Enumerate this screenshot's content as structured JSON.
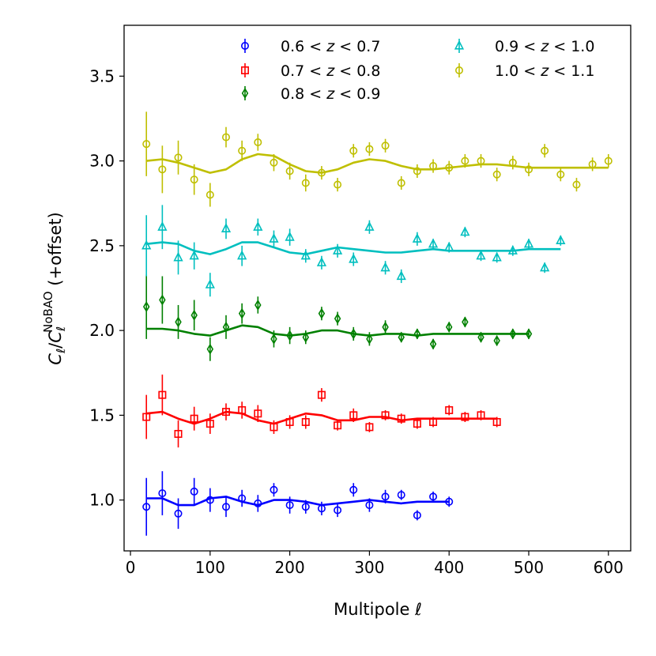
{
  "chart_data": {
    "type": "scatter",
    "xlabel": "Multipole",
    "xlabel_symbol": "ℓ",
    "ylabel_parts": {
      "c1": "C",
      "l1": "ℓ",
      "slash": "/",
      "c2": "C",
      "l2": "ℓ",
      "sup": "NoBAO",
      "suffix": " (+offset)"
    },
    "xlim": [
      -8,
      628
    ],
    "ylim": [
      0.7,
      3.8
    ],
    "xticks": [
      0,
      100,
      200,
      300,
      400,
      500,
      600
    ],
    "yticks": [
      "1.0",
      "1.5",
      "2.0",
      "2.5",
      "3.0",
      "3.5"
    ],
    "legend_z": "z",
    "legend_lt": "<",
    "series": [
      {
        "name": "0.6 < z < 0.7",
        "lo": "0.6",
        "hi": "0.7",
        "color": "#0000ff",
        "marker": "circle",
        "x": [
          20,
          40,
          60,
          80,
          100,
          120,
          140,
          160,
          180,
          200,
          220,
          240,
          260,
          280,
          300,
          320,
          340,
          360,
          380,
          400
        ],
        "y": [
          0.96,
          1.04,
          0.92,
          1.05,
          1.0,
          0.96,
          1.01,
          0.98,
          1.06,
          0.97,
          0.96,
          0.95,
          0.94,
          1.06,
          0.97,
          1.02,
          1.03,
          0.91,
          1.02,
          0.99
        ],
        "err": [
          0.17,
          0.13,
          0.09,
          0.08,
          0.07,
          0.06,
          0.05,
          0.05,
          0.04,
          0.05,
          0.04,
          0.04,
          0.04,
          0.04,
          0.04,
          0.04,
          0.03,
          0.03,
          0.03,
          0.03
        ],
        "model_x": [
          20,
          40,
          60,
          80,
          100,
          120,
          140,
          160,
          180,
          200,
          220,
          240,
          260,
          280,
          300,
          320,
          340,
          360,
          380,
          400
        ],
        "model_y": [
          1.01,
          1.01,
          0.97,
          0.97,
          1.01,
          1.02,
          0.99,
          0.97,
          1.0,
          1.0,
          0.99,
          0.97,
          0.98,
          0.99,
          1.0,
          0.99,
          0.98,
          0.99,
          0.99,
          0.99
        ]
      },
      {
        "name": "0.7 < z < 0.8",
        "lo": "0.7",
        "hi": "0.8",
        "color": "#ff0000",
        "marker": "square",
        "x": [
          20,
          40,
          60,
          80,
          100,
          120,
          140,
          160,
          180,
          200,
          220,
          240,
          260,
          280,
          300,
          320,
          340,
          360,
          380,
          400,
          420,
          440,
          460
        ],
        "y": [
          1.49,
          1.62,
          1.39,
          1.48,
          1.45,
          1.52,
          1.53,
          1.51,
          1.43,
          1.46,
          1.46,
          1.62,
          1.44,
          1.5,
          1.43,
          1.5,
          1.48,
          1.45,
          1.46,
          1.53,
          1.49,
          1.5,
          1.46
        ],
        "err": [
          0.13,
          0.12,
          0.08,
          0.07,
          0.06,
          0.05,
          0.05,
          0.05,
          0.04,
          0.04,
          0.04,
          0.04,
          0.03,
          0.04,
          0.03,
          0.03,
          0.03,
          0.03,
          0.03,
          0.03,
          0.03,
          0.03,
          0.03
        ],
        "model_x": [
          20,
          40,
          60,
          80,
          100,
          120,
          140,
          160,
          180,
          200,
          220,
          240,
          260,
          280,
          300,
          320,
          340,
          360,
          380,
          400,
          420,
          440,
          460
        ],
        "model_y": [
          1.51,
          1.52,
          1.48,
          1.45,
          1.48,
          1.52,
          1.51,
          1.47,
          1.45,
          1.48,
          1.51,
          1.5,
          1.47,
          1.47,
          1.49,
          1.49,
          1.47,
          1.48,
          1.48,
          1.48,
          1.48,
          1.48,
          1.48
        ]
      },
      {
        "name": "0.8 < z < 0.9",
        "lo": "0.8",
        "hi": "0.9",
        "color": "#008000",
        "marker": "diamond",
        "x": [
          20,
          40,
          60,
          80,
          100,
          120,
          140,
          160,
          180,
          200,
          220,
          240,
          260,
          280,
          300,
          320,
          340,
          360,
          380,
          400,
          420,
          440,
          460,
          480,
          500
        ],
        "y": [
          2.14,
          2.18,
          2.05,
          2.09,
          1.89,
          2.02,
          2.1,
          2.15,
          1.95,
          1.97,
          1.96,
          2.1,
          2.07,
          1.98,
          1.95,
          2.02,
          1.96,
          1.98,
          1.92,
          2.02,
          2.05,
          1.96,
          1.94,
          1.98,
          1.98
        ],
        "err": [
          0.19,
          0.14,
          0.1,
          0.09,
          0.07,
          0.07,
          0.06,
          0.05,
          0.05,
          0.05,
          0.04,
          0.04,
          0.04,
          0.04,
          0.04,
          0.04,
          0.03,
          0.03,
          0.03,
          0.03,
          0.03,
          0.03,
          0.03,
          0.03,
          0.03
        ],
        "model_x": [
          20,
          40,
          60,
          80,
          100,
          120,
          140,
          160,
          180,
          200,
          220,
          240,
          260,
          280,
          300,
          320,
          340,
          360,
          380,
          400,
          420,
          440,
          460,
          480,
          500
        ],
        "model_y": [
          2.01,
          2.01,
          2.0,
          1.98,
          1.97,
          2.0,
          2.03,
          2.02,
          1.98,
          1.97,
          1.98,
          2.0,
          2.0,
          1.98,
          1.97,
          1.98,
          1.98,
          1.97,
          1.98,
          1.98,
          1.98,
          1.98,
          1.98,
          1.98,
          1.98
        ]
      },
      {
        "name": "0.9 < z < 1.0",
        "lo": "0.9",
        "hi": "1.0",
        "color": "#00bfbf",
        "marker": "triangle",
        "x": [
          20,
          40,
          60,
          80,
          100,
          120,
          140,
          160,
          180,
          200,
          220,
          240,
          260,
          280,
          300,
          320,
          340,
          360,
          380,
          400,
          420,
          440,
          460,
          480,
          500,
          520,
          540
        ],
        "y": [
          2.5,
          2.61,
          2.43,
          2.44,
          2.27,
          2.6,
          2.44,
          2.61,
          2.54,
          2.55,
          2.44,
          2.4,
          2.47,
          2.42,
          2.61,
          2.37,
          2.32,
          2.54,
          2.51,
          2.49,
          2.58,
          2.44,
          2.43,
          2.47,
          2.51,
          2.37,
          2.53
        ],
        "err": [
          0.18,
          0.13,
          0.1,
          0.08,
          0.07,
          0.06,
          0.06,
          0.05,
          0.05,
          0.05,
          0.04,
          0.04,
          0.04,
          0.04,
          0.04,
          0.04,
          0.04,
          0.04,
          0.03,
          0.03,
          0.03,
          0.03,
          0.03,
          0.03,
          0.03,
          0.03,
          0.03
        ],
        "model_x": [
          20,
          40,
          60,
          80,
          100,
          120,
          140,
          160,
          180,
          200,
          220,
          240,
          260,
          280,
          300,
          320,
          340,
          360,
          380,
          400,
          420,
          440,
          460,
          480,
          500,
          520,
          540
        ],
        "model_y": [
          2.51,
          2.52,
          2.51,
          2.47,
          2.45,
          2.48,
          2.52,
          2.52,
          2.49,
          2.46,
          2.45,
          2.47,
          2.49,
          2.48,
          2.47,
          2.46,
          2.46,
          2.47,
          2.48,
          2.47,
          2.47,
          2.47,
          2.47,
          2.47,
          2.48,
          2.48,
          2.48
        ]
      },
      {
        "name": "1.0 < z < 1.1",
        "lo": "1.0",
        "hi": "1.1",
        "color": "#bfbf00",
        "marker": "circle",
        "x": [
          20,
          40,
          60,
          80,
          100,
          120,
          140,
          160,
          180,
          200,
          220,
          240,
          260,
          280,
          300,
          320,
          340,
          360,
          380,
          400,
          420,
          440,
          460,
          480,
          500,
          520,
          540,
          560,
          580,
          600
        ],
        "y": [
          3.1,
          2.95,
          3.02,
          2.89,
          2.8,
          3.14,
          3.06,
          3.11,
          2.99,
          2.94,
          2.87,
          2.93,
          2.86,
          3.06,
          3.07,
          3.09,
          2.87,
          2.94,
          2.97,
          2.96,
          3.0,
          3.0,
          2.92,
          2.99,
          2.95,
          3.06,
          2.92,
          2.86,
          2.98,
          3.0
        ],
        "err": [
          0.19,
          0.14,
          0.1,
          0.09,
          0.07,
          0.06,
          0.06,
          0.05,
          0.05,
          0.05,
          0.05,
          0.04,
          0.04,
          0.04,
          0.04,
          0.04,
          0.04,
          0.04,
          0.04,
          0.04,
          0.04,
          0.04,
          0.04,
          0.04,
          0.04,
          0.04,
          0.04,
          0.04,
          0.04,
          0.04
        ],
        "model_x": [
          20,
          40,
          60,
          80,
          100,
          120,
          140,
          160,
          180,
          200,
          220,
          240,
          260,
          280,
          300,
          320,
          340,
          360,
          380,
          400,
          420,
          440,
          460,
          480,
          500,
          520,
          540,
          560,
          580,
          600
        ],
        "model_y": [
          3.0,
          3.01,
          2.99,
          2.96,
          2.93,
          2.95,
          3.01,
          3.04,
          3.03,
          2.98,
          2.94,
          2.93,
          2.95,
          2.99,
          3.01,
          3.0,
          2.97,
          2.95,
          2.95,
          2.96,
          2.97,
          2.98,
          2.98,
          2.97,
          2.96,
          2.96,
          2.96,
          2.96,
          2.96,
          2.96
        ]
      }
    ]
  }
}
